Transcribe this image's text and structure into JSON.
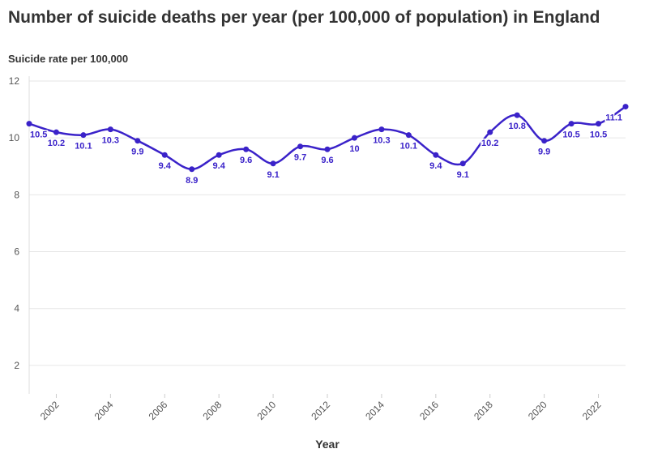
{
  "title": "Number of suicide deaths per year (per 100,000 of population) in England",
  "chart_data": {
    "type": "line",
    "title": "Number of suicide deaths per year (per 100,000 of population) in England",
    "ylabel": "Suicide rate per 100,000",
    "xlabel": "Year",
    "x": [
      2001,
      2002,
      2003,
      2004,
      2005,
      2006,
      2007,
      2008,
      2009,
      2010,
      2011,
      2012,
      2013,
      2014,
      2015,
      2016,
      2017,
      2018,
      2019,
      2020,
      2021,
      2022,
      2023
    ],
    "series": [
      {
        "values": [
          10.5,
          10.2,
          10.1,
          10.3,
          9.9,
          9.4,
          8.9,
          9.4,
          9.6,
          9.1,
          9.7,
          9.6,
          10,
          10.3,
          10.1,
          9.4,
          9.1,
          10.2,
          10.8,
          9.9,
          10.5,
          10.5,
          11.1
        ]
      }
    ],
    "value_labels": [
      "10.5",
      "10.2",
      "10.1",
      "10.3",
      "9.9",
      "9.4",
      "8.9",
      "9.4",
      "9.6",
      "9.1",
      "9.7",
      "9.6",
      "10",
      "10.3",
      "10.1",
      "9.4",
      "9.1",
      "10.2",
      "10.8",
      "9.9",
      "10.5",
      "10.5",
      "11.1"
    ],
    "xlim": [
      2001,
      2023
    ],
    "ylim": [
      1,
      12
    ],
    "y_ticks": [
      2,
      4,
      6,
      8,
      10,
      12
    ],
    "x_ticks": [
      2002,
      2004,
      2006,
      2008,
      2010,
      2012,
      2014,
      2016,
      2018,
      2020,
      2022
    ],
    "grid": true,
    "line_color": "#3a22c9"
  }
}
